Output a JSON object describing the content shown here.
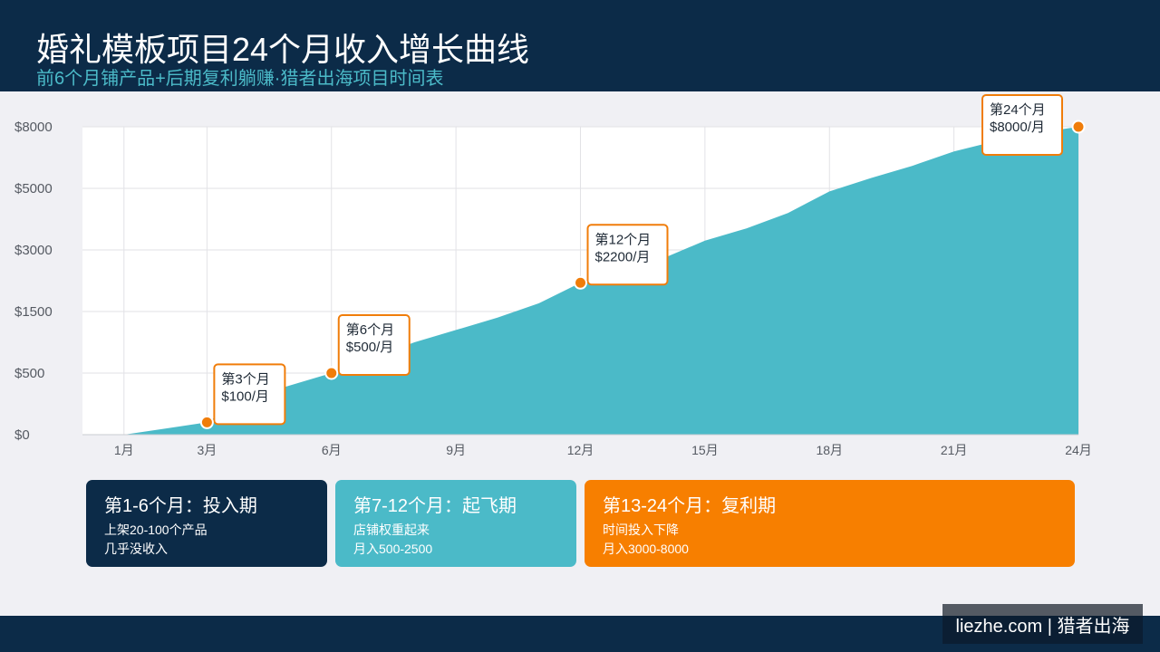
{
  "header": {
    "title": "婚礼模板项目24个月收入增长曲线",
    "subtitle": "前6个月铺产品+后期复利躺赚·猎者出海项目时间表"
  },
  "colors": {
    "header_bg": "#0c2b48",
    "accent_teal": "#4bbac8",
    "accent_orange": "#f77f00",
    "page_bg": "#f0f0f4"
  },
  "chart_data": {
    "type": "area",
    "x": [
      1,
      2,
      3,
      4,
      5,
      6,
      7,
      8,
      9,
      10,
      11,
      12,
      13,
      14,
      15,
      16,
      17,
      18,
      19,
      20,
      21,
      22,
      23,
      24
    ],
    "y_tick_labels": [
      "$0",
      "$500",
      "$1500",
      "$3000",
      "$5000",
      "$8000"
    ],
    "y_tick_values": [
      0,
      500,
      1500,
      3000,
      5000,
      8000
    ],
    "y_scale": "non-linear (equally spaced labeled ticks)",
    "x_tick_values": [
      1,
      3,
      6,
      9,
      12,
      15,
      18,
      21,
      24
    ],
    "x_tick_labels": [
      "1月",
      "3月",
      "6月",
      "9月",
      "12月",
      "15月",
      "18月",
      "21月",
      "24月"
    ],
    "xlim": [
      0,
      24
    ],
    "ylim": [
      0,
      8000
    ],
    "grid": true,
    "fill_color": "#4bbac8",
    "series": [
      {
        "values": [
          0,
          50,
          100,
          300,
          400,
          500,
          750,
          1000,
          1200,
          1400,
          1700,
          2200,
          2500,
          2800,
          3300,
          3700,
          4200,
          4900,
          5500,
          6100,
          6800,
          7300,
          7700,
          8000
        ]
      }
    ],
    "annotations": [
      {
        "x": 3,
        "y": 100,
        "line1": "第3个月",
        "line2": "$100/月"
      },
      {
        "x": 6,
        "y": 500,
        "line1": "第6个月",
        "line2": "$500/月"
      },
      {
        "x": 12,
        "y": 2200,
        "line1": "第12个月",
        "line2": "$2200/月"
      },
      {
        "x": 24,
        "y": 8000,
        "line1": "第24个月",
        "line2": "$8000/月"
      }
    ]
  },
  "phases": [
    {
      "title": "第1-6个月：投入期",
      "line1": "上架20-100个产品",
      "line2": "几乎没收入"
    },
    {
      "title": "第7-12个月：起飞期",
      "line1": "店铺权重起来",
      "line2": "月入500-2500"
    },
    {
      "title": "第13-24个月：复利期",
      "line1": "时间投入下降",
      "line2": "月入3000-8000"
    }
  ],
  "footer": {
    "brand": "liezhe.com | 猎者出海"
  }
}
